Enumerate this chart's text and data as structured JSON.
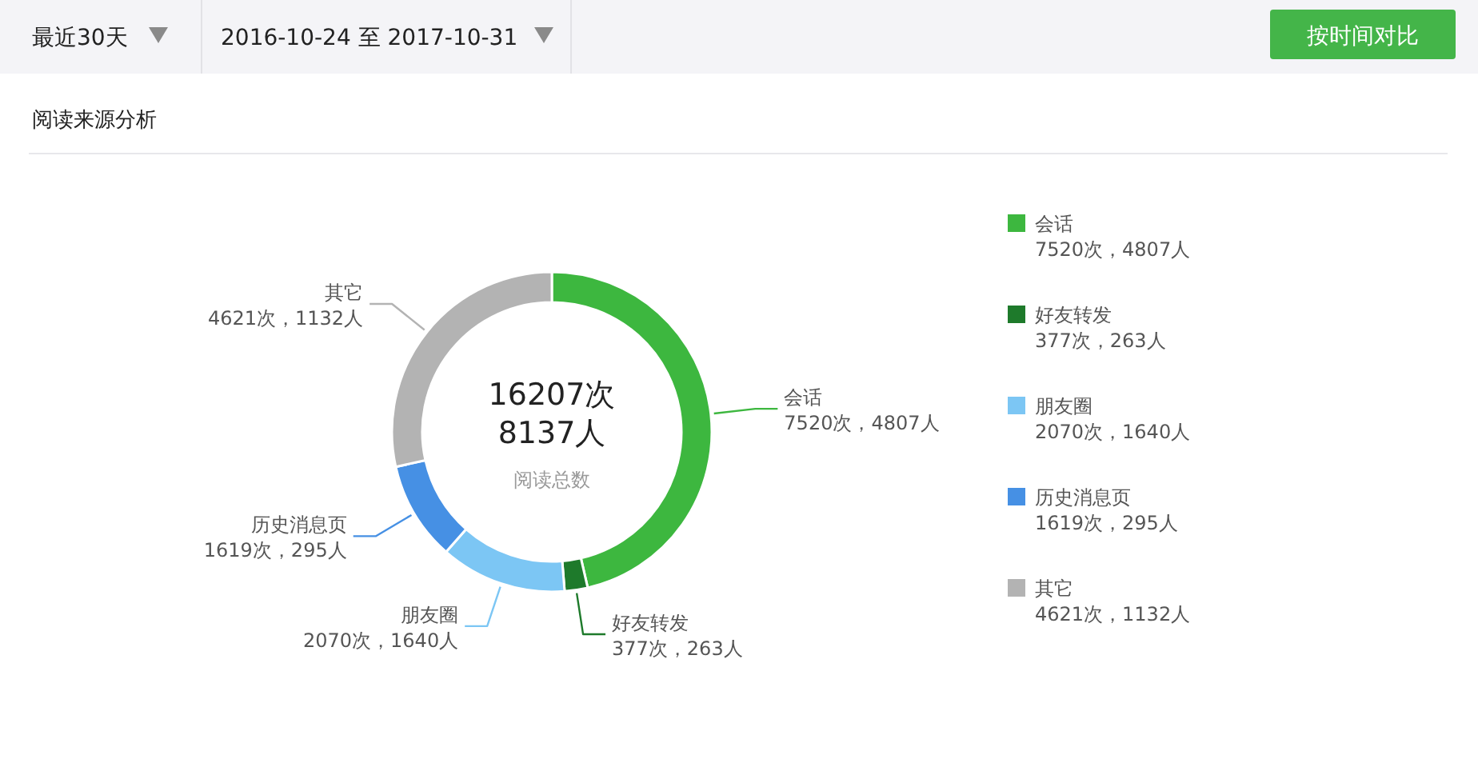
{
  "chart_data": {
    "type": "donut",
    "title": "阅读来源分析",
    "categories": [
      "会话",
      "好友转发",
      "朋友圈",
      "历史消息页",
      "其它"
    ],
    "values": [
      7520,
      377,
      2070,
      1619,
      4621
    ],
    "colors": [
      "#3db73f",
      "#1e7a2b",
      "#7cc6f4",
      "#4690e4",
      "#b3b3b3"
    ],
    "value_labels": [
      "7520次，4807人",
      "377次，263人",
      "2070次，1640人",
      "1619次，295人",
      "4621次，1132人"
    ],
    "legend": "right",
    "annotations": [
      "最近30天",
      "2016-10-24 至 2017-10-31",
      "按时间对比",
      "16207次",
      "8137人",
      "阅读总数"
    ]
  }
}
